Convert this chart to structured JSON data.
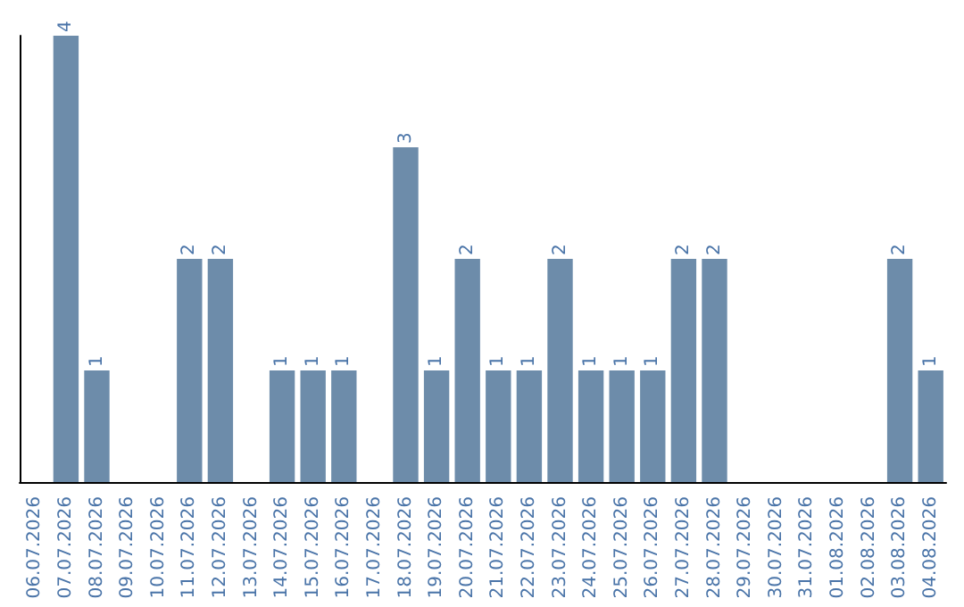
{
  "chart_data": {
    "type": "bar",
    "categories": [
      "06.07.2026",
      "07.07.2026",
      "08.07.2026",
      "09.07.2026",
      "10.07.2026",
      "11.07.2026",
      "12.07.2026",
      "13.07.2026",
      "14.07.2026",
      "15.07.2026",
      "16.07.2026",
      "17.07.2026",
      "18.07.2026",
      "19.07.2026",
      "20.07.2026",
      "21.07.2026",
      "22.07.2026",
      "23.07.2026",
      "24.07.2026",
      "25.07.2026",
      "26.07.2026",
      "27.07.2026",
      "28.07.2026",
      "29.07.2026",
      "30.07.2026",
      "31.07.2026",
      "01.08.2026",
      "02.08.2026",
      "03.08.2026",
      "04.08.2026"
    ],
    "values": [
      null,
      4,
      1,
      null,
      null,
      2,
      2,
      null,
      1,
      1,
      1,
      null,
      3,
      1,
      2,
      1,
      1,
      2,
      1,
      1,
      1,
      2,
      2,
      null,
      null,
      null,
      null,
      null,
      2,
      1
    ],
    "color": "#6d8caa",
    "data_labels": true,
    "tick_labels": "x",
    "grid": false
  }
}
